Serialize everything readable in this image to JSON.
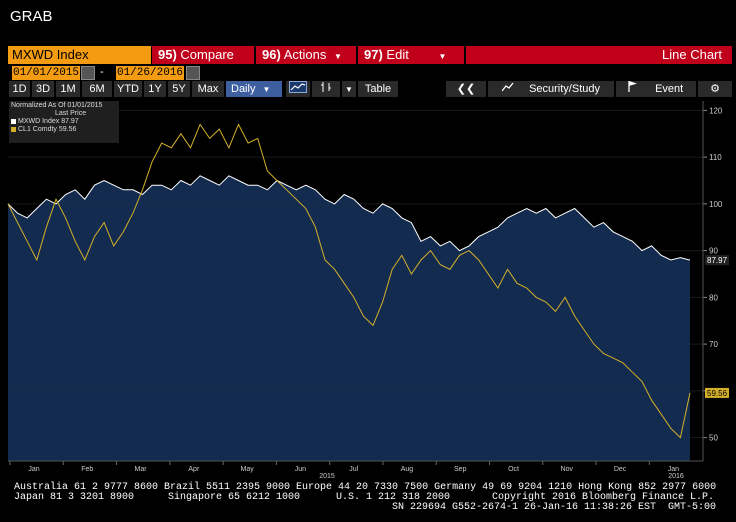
{
  "window": {
    "title": "GRAB"
  },
  "command_bar": {
    "security": "MXWD Index",
    "compare_num": "95)",
    "compare_label": "Compare",
    "actions_num": "96)",
    "actions_label": "Actions",
    "edit_num": "97)",
    "edit_label": "Edit",
    "chart_type": "Line Chart"
  },
  "dates": {
    "start": "01/01/2015",
    "separator": "-",
    "end": "01/26/2016"
  },
  "periods": [
    "1D",
    "3D",
    "1M",
    "6M",
    "YTD",
    "1Y",
    "5Y",
    "Max"
  ],
  "frequency": "Daily",
  "toolbar": {
    "table": "Table",
    "security_study": "Security/Study",
    "event": "Event"
  },
  "icons": {
    "collapse": "double-left-chevron-icon",
    "security_study": "chart-line-icon",
    "event": "flag-icon",
    "settings": "gear-icon",
    "line_style": "line-chart-style-icon",
    "bar_style": "candlestick-icon"
  },
  "legend": {
    "normalized": "Normalized As Of 01/01/2015",
    "last_price": "Last Price",
    "series": [
      {
        "name": "MXWD Index",
        "value": "87.97",
        "color": "#ffffff"
      },
      {
        "name": "CL1 Comdty",
        "value": "59.56",
        "color": "#d4b02a"
      }
    ]
  },
  "chart_data": {
    "type": "line",
    "ylim": [
      45,
      122
    ],
    "yticks": [
      50,
      60,
      70,
      80,
      90,
      100,
      110,
      120
    ],
    "months": [
      "Jan",
      "Feb",
      "Mar",
      "Apr",
      "May",
      "Jun",
      "Jul",
      "Aug",
      "Sep",
      "Oct",
      "Nov",
      "Dec",
      "Jan"
    ],
    "year_labels": [
      "2015",
      "2016"
    ],
    "series": [
      {
        "name": "MXWD Index",
        "color": "#ffffff",
        "fill": "#142d52",
        "last_label": "87.97",
        "values": [
          100,
          98,
          97,
          99,
          101,
          100,
          102,
          103,
          101,
          104,
          105,
          104,
          103,
          103,
          102,
          104,
          104,
          103,
          105,
          104,
          106,
          105,
          104,
          106,
          105,
          104,
          104,
          103,
          105,
          104,
          103,
          104,
          103,
          101,
          100,
          102,
          101,
          99,
          98,
          100,
          99,
          97,
          96,
          92,
          93,
          91,
          92,
          90,
          91,
          93,
          94,
          95,
          97,
          98,
          99,
          98,
          99,
          97,
          98,
          99,
          97,
          95,
          96,
          94,
          93,
          92,
          90,
          91,
          89,
          88,
          88.5,
          87.97
        ]
      },
      {
        "name": "CL1 Comdty",
        "color": "#d4b02a",
        "last_label": "59.56",
        "values": [
          100,
          96,
          92,
          88,
          95,
          101,
          97,
          92,
          88,
          93,
          96,
          91,
          94,
          98,
          103,
          109,
          113,
          112,
          115,
          112,
          117,
          114,
          116,
          112,
          117,
          113,
          114,
          107,
          105,
          103,
          101,
          99,
          95,
          88,
          86,
          83,
          80,
          76,
          74,
          79,
          86,
          89,
          85,
          88,
          90,
          87,
          86,
          89,
          90,
          88,
          85,
          82,
          86,
          83,
          82,
          80,
          79,
          77,
          80,
          76,
          73,
          70,
          68,
          67,
          66,
          64,
          62,
          58,
          55,
          52,
          50,
          59.56
        ]
      }
    ]
  },
  "footer": {
    "line1": "Australia 61 2 9777 8600 Brazil 5511 2395 9000 Europe 44 20 7330 7500 Germany 49 69 9204 1210 Hong Kong 852 2977 6000",
    "line2_left": "Japan 81 3 3201 8900",
    "line2_mid": "Singapore 65 6212 1000",
    "line2_mid2": "U.S. 1 212 318 2000",
    "line2_right": "Copyright 2016 Bloomberg Finance L.P.",
    "line3": "SN 229694 G552-2674-1 26-Jan-16 11:38:26 EST  GMT-5:00"
  }
}
